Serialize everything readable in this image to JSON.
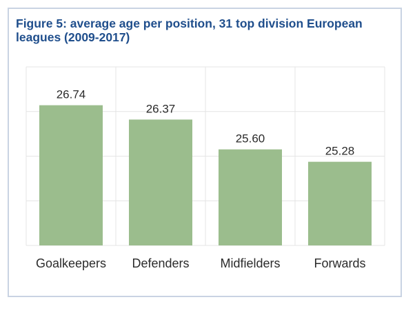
{
  "chart_data": {
    "type": "bar",
    "title": "Figure 5: average age per position, 31 top division European leagues (2009-2017)",
    "categories": [
      "Goalkeepers",
      "Defenders",
      "Midfielders",
      "Forwards"
    ],
    "values": [
      26.74,
      26.37,
      25.6,
      25.28
    ],
    "value_labels": [
      "26.74",
      "26.37",
      "25.60",
      "25.28"
    ],
    "xlabel": "",
    "ylabel": "",
    "ylim": [
      23.12,
      27.73
    ],
    "grid": true,
    "bar_color": "#9bbd8d",
    "grid_color": "#e4e4e4",
    "title_color": "#1f4e8c",
    "border_color": "#c9d3e3"
  }
}
